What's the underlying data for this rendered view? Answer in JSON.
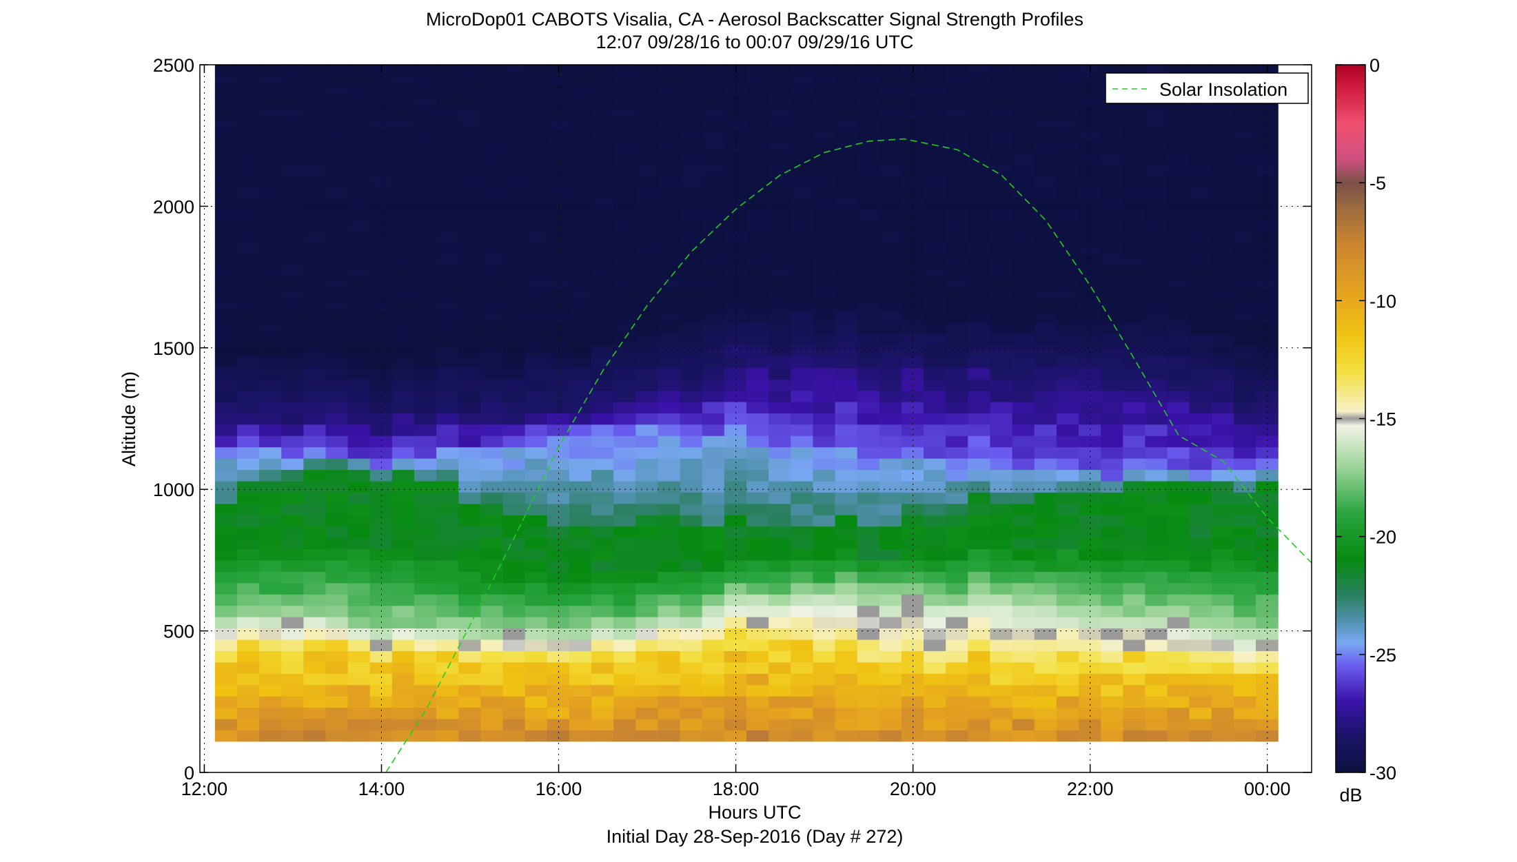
{
  "chart_data": {
    "type": "heatmap",
    "title": "MicroDop01 CABOTS Visalia, CA - Aerosol Backscatter Signal Strength Profiles",
    "subtitle": "12:07 09/28/16 to 00:07 09/29/16  UTC",
    "xlabel": "Hours UTC",
    "ylabel": "Altitude (m)",
    "footer": "Initial Day 28-Sep-2016 (Day # 272)",
    "xlim": [
      11.95,
      24.5
    ],
    "ylim": [
      0,
      2500
    ],
    "x_ticks": [
      {
        "value": 12,
        "label": "12:00"
      },
      {
        "value": 14,
        "label": "14:00"
      },
      {
        "value": 16,
        "label": "16:00"
      },
      {
        "value": 18,
        "label": "18:00"
      },
      {
        "value": 20,
        "label": "20:00"
      },
      {
        "value": 22,
        "label": "22:00"
      },
      {
        "value": 24,
        "label": "00:00"
      }
    ],
    "y_ticks": [
      {
        "value": 0,
        "label": "0"
      },
      {
        "value": 500,
        "label": "500"
      },
      {
        "value": 1000,
        "label": "1000"
      },
      {
        "value": 1500,
        "label": "1500"
      },
      {
        "value": 2000,
        "label": "2000"
      },
      {
        "value": 2500,
        "label": "2500"
      }
    ],
    "data_extent": {
      "x_start": 12.12,
      "x_end": 24.12,
      "y_start": 110,
      "y_end": 2500
    },
    "time_step_hours": 0.25,
    "altitude_step_m": 40,
    "layers": {
      "x": [
        12.12,
        13,
        14,
        15,
        16,
        17,
        18,
        19,
        20,
        21,
        22,
        23,
        24.12
      ],
      "yellow_top_m": [
        440,
        430,
        420,
        420,
        420,
        430,
        490,
        450,
        400,
        420,
        400,
        380,
        380
      ],
      "white_top_m": [
        560,
        540,
        510,
        500,
        500,
        520,
        620,
        640,
        620,
        620,
        560,
        530,
        500
      ],
      "green_top_m": [
        980,
        1060,
        1050,
        960,
        880,
        880,
        880,
        880,
        920,
        980,
        1000,
        1000,
        1040
      ],
      "lightblue_top_m": [
        1150,
        1120,
        1090,
        1150,
        1200,
        1220,
        1200,
        1150,
        1120,
        1100,
        1060,
        1050,
        1080
      ],
      "purple_top_m": [
        1260,
        1250,
        1230,
        1250,
        1280,
        1340,
        1420,
        1430,
        1400,
        1380,
        1380,
        1340,
        1240
      ]
    },
    "series": [
      {
        "name": "Solar Insolation",
        "type": "line",
        "style": "dashed",
        "color": "#22cc22",
        "x": [
          14.05,
          14.5,
          15,
          15.5,
          16,
          16.5,
          17,
          17.5,
          18,
          18.5,
          19,
          19.5,
          19.9,
          20.5,
          21,
          21.5,
          22,
          22.5,
          23,
          23.5,
          24,
          24.5
        ],
        "y": [
          0,
          220,
          520,
          830,
          1150,
          1420,
          1650,
          1840,
          1990,
          2110,
          2190,
          2230,
          2238,
          2200,
          2110,
          1950,
          1720,
          1460,
          1190,
          1100,
          900,
          740
        ]
      }
    ],
    "legend": {
      "placement": "top-right",
      "entries": [
        "Solar Insolation"
      ]
    },
    "colorbar": {
      "label": "dB",
      "range": [
        -30,
        0
      ],
      "ticks": [
        {
          "value": 0,
          "label": "0"
        },
        {
          "value": -5,
          "label": "-5"
        },
        {
          "value": -10,
          "label": "-10"
        },
        {
          "value": -15,
          "label": "-15"
        },
        {
          "value": -20,
          "label": "-20"
        },
        {
          "value": -25,
          "label": "-25"
        },
        {
          "value": -30,
          "label": "-30"
        }
      ],
      "stops": [
        {
          "value": -30,
          "color": "#0c1140"
        },
        {
          "value": -28.5,
          "color": "#1a1466"
        },
        {
          "value": -27,
          "color": "#3a12a8"
        },
        {
          "value": -25.5,
          "color": "#6a5cf0"
        },
        {
          "value": -24.5,
          "color": "#78a8f2"
        },
        {
          "value": -23.5,
          "color": "#4e8fa8"
        },
        {
          "value": -22.5,
          "color": "#2a8060"
        },
        {
          "value": -21,
          "color": "#078a10"
        },
        {
          "value": -19,
          "color": "#2aa540"
        },
        {
          "value": -17,
          "color": "#9fd59b"
        },
        {
          "value": -15.3,
          "color": "#f0f3e6"
        },
        {
          "value": -15,
          "color": "#9a9a9a"
        },
        {
          "value": -14.7,
          "color": "#f6f1c8"
        },
        {
          "value": -13,
          "color": "#f3e040"
        },
        {
          "value": -11.5,
          "color": "#f0c413"
        },
        {
          "value": -9.5,
          "color": "#e3a020"
        },
        {
          "value": -7.5,
          "color": "#c88430"
        },
        {
          "value": -6,
          "color": "#9a6a40"
        },
        {
          "value": -5,
          "color": "#7a5048"
        },
        {
          "value": -4,
          "color": "#d05080"
        },
        {
          "value": -2.5,
          "color": "#f05070"
        },
        {
          "value": -1,
          "color": "#d01c40"
        },
        {
          "value": 0,
          "color": "#b00020"
        }
      ]
    }
  }
}
